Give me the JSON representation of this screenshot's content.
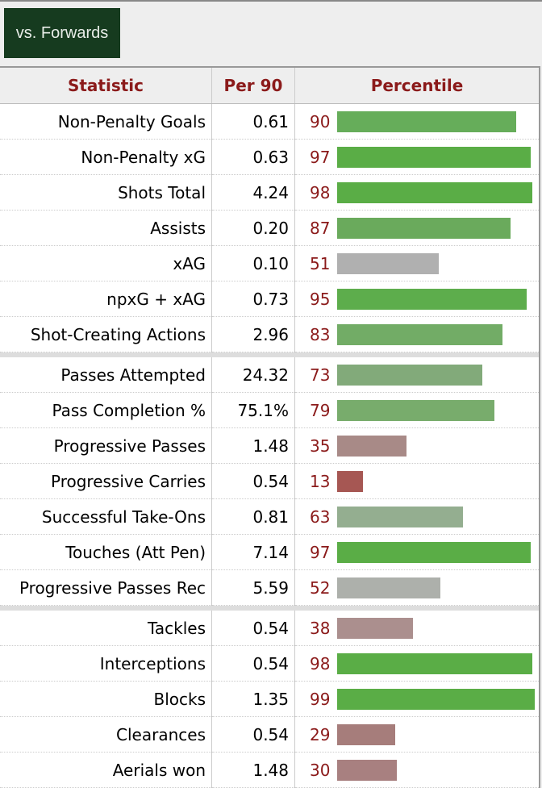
{
  "tab_label": "vs. Forwards",
  "headers": {
    "statistic": "Statistic",
    "per90": "Per 90",
    "percentile": "Percentile"
  },
  "sections": [
    [
      {
        "stat": "Non-Penalty Goals",
        "per90": "0.61",
        "pct": 90,
        "color": "#66ad5a"
      },
      {
        "stat": "Non-Penalty xG",
        "per90": "0.63",
        "pct": 97,
        "color": "#5aad46"
      },
      {
        "stat": "Shots Total",
        "per90": "4.24",
        "pct": 98,
        "color": "#5aad46"
      },
      {
        "stat": "Assists",
        "per90": "0.20",
        "pct": 87,
        "color": "#6aaa5c"
      },
      {
        "stat": "xAG",
        "per90": "0.10",
        "pct": 51,
        "color": "#b0b0b0"
      },
      {
        "stat": "npxG + xAG",
        "per90": "0.73",
        "pct": 95,
        "color": "#5dad4c"
      },
      {
        "stat": "Shot-Creating Actions",
        "per90": "2.96",
        "pct": 83,
        "color": "#72ac66"
      }
    ],
    [
      {
        "stat": "Passes Attempted",
        "per90": "24.32",
        "pct": 73,
        "color": "#82aa7a"
      },
      {
        "stat": "Pass Completion %",
        "per90": "75.1%",
        "pct": 79,
        "color": "#78ac6c"
      },
      {
        "stat": "Progressive Passes",
        "per90": "1.48",
        "pct": 35,
        "color": "#a88a87"
      },
      {
        "stat": "Progressive Carries",
        "per90": "0.54",
        "pct": 13,
        "color": "#a65753"
      },
      {
        "stat": "Successful Take-Ons",
        "per90": "0.81",
        "pct": 63,
        "color": "#94ae90"
      },
      {
        "stat": "Touches (Att Pen)",
        "per90": "7.14",
        "pct": 97,
        "color": "#5aad46"
      },
      {
        "stat": "Progressive Passes Rec",
        "per90": "5.59",
        "pct": 52,
        "color": "#adb0ab"
      }
    ],
    [
      {
        "stat": "Tackles",
        "per90": "0.54",
        "pct": 38,
        "color": "#ab8f8e"
      },
      {
        "stat": "Interceptions",
        "per90": "0.54",
        "pct": 98,
        "color": "#5aad46"
      },
      {
        "stat": "Blocks",
        "per90": "1.35",
        "pct": 99,
        "color": "#5aad46"
      },
      {
        "stat": "Clearances",
        "per90": "0.54",
        "pct": 29,
        "color": "#a67d7b"
      },
      {
        "stat": "Aerials won",
        "per90": "1.48",
        "pct": 30,
        "color": "#a88080"
      }
    ]
  ]
}
